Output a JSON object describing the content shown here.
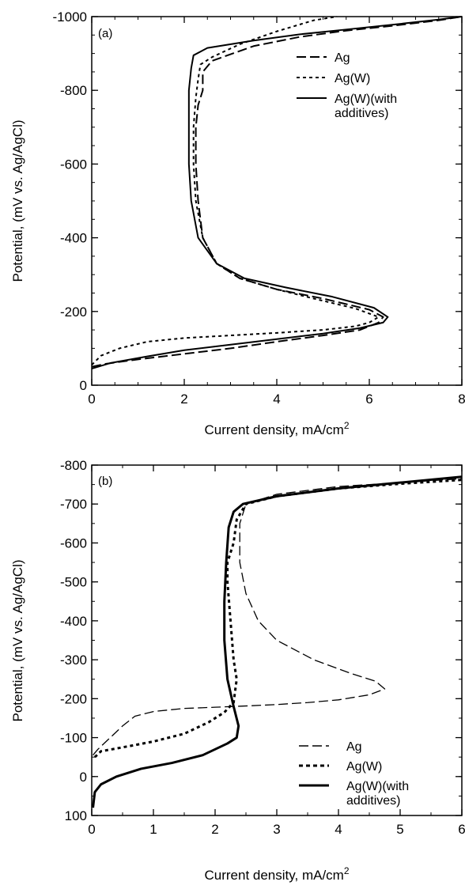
{
  "chart_data": [
    {
      "type": "line",
      "panel_label": "(a)",
      "xlabel": "Current density, mA/cm",
      "xlabel_sup": "2",
      "ylabel": "Potential, (mV vs. Ag/AgCl)",
      "xlim": [
        0,
        8
      ],
      "ylim": [
        0,
        -1000
      ],
      "y_reversed": true,
      "xticks": [
        0,
        2,
        4,
        6,
        8
      ],
      "yticks": [
        0,
        -200,
        -400,
        -600,
        -800,
        -1000
      ],
      "minor_x": 0.5,
      "minor_y": 50,
      "grid": false,
      "legend_position": "top-right",
      "series": [
        {
          "name": "Ag",
          "style": "long-dash",
          "x": [
            0.0,
            0.3,
            1.0,
            2.0,
            3.0,
            4.0,
            5.0,
            5.8,
            6.2,
            6.3,
            6.0,
            5.0,
            4.0,
            3.2,
            2.7,
            2.4,
            2.3,
            2.25,
            2.25,
            2.3,
            2.4,
            2.4,
            2.6,
            3.5,
            4.5,
            5.5,
            6.5,
            7.5,
            8.0
          ],
          "y": [
            -50,
            -58,
            -70,
            -85,
            -100,
            -118,
            -135,
            -150,
            -170,
            -185,
            -205,
            -235,
            -260,
            -290,
            -330,
            -400,
            -500,
            -600,
            -700,
            -760,
            -800,
            -850,
            -880,
            -920,
            -945,
            -962,
            -975,
            -990,
            -1000
          ]
        },
        {
          "name": "Ag(W)",
          "style": "short-dash",
          "x": [
            0.0,
            0.2,
            0.6,
            1.2,
            2.0,
            3.0,
            4.0,
            5.0,
            5.7,
            6.0,
            6.2,
            5.7,
            4.8,
            4.0,
            3.2,
            2.7,
            2.4,
            2.25,
            2.2,
            2.2,
            2.25,
            2.3,
            2.35,
            2.6,
            3.2,
            4.0,
            4.8,
            5.3
          ],
          "y": [
            -55,
            -80,
            -100,
            -118,
            -128,
            -135,
            -142,
            -150,
            -160,
            -170,
            -185,
            -208,
            -235,
            -260,
            -290,
            -330,
            -400,
            -500,
            -600,
            -700,
            -780,
            -830,
            -870,
            -890,
            -925,
            -960,
            -990,
            -1000
          ]
        },
        {
          "name": "Ag(W)(with additives)",
          "style": "solid",
          "x": [
            0.0,
            0.4,
            1.2,
            2.0,
            3.0,
            4.0,
            5.0,
            5.8,
            6.3,
            6.4,
            6.1,
            5.2,
            4.2,
            3.3,
            2.7,
            2.3,
            2.15,
            2.1,
            2.1,
            2.1,
            2.15,
            2.2,
            2.5,
            3.5,
            4.5,
            5.5,
            6.5,
            7.5,
            8.0
          ],
          "y": [
            -45,
            -60,
            -78,
            -95,
            -110,
            -125,
            -140,
            -155,
            -170,
            -185,
            -210,
            -240,
            -265,
            -290,
            -330,
            -400,
            -500,
            -600,
            -700,
            -800,
            -860,
            -895,
            -915,
            -935,
            -952,
            -965,
            -978,
            -992,
            -1000
          ]
        }
      ]
    },
    {
      "type": "line",
      "panel_label": "(b)",
      "xlabel": "Current density, mA/cm",
      "xlabel_sup": "2",
      "ylabel": "Potential, (mV vs. Ag/AgCl)",
      "xlim": [
        0,
        6
      ],
      "ylim": [
        100,
        -800
      ],
      "y_reversed": true,
      "xticks": [
        0,
        1,
        2,
        3,
        4,
        5,
        6
      ],
      "yticks": [
        100,
        0,
        -100,
        -200,
        -300,
        -400,
        -500,
        -600,
        -700,
        -800
      ],
      "minor_x": 0.5,
      "minor_y": 50,
      "grid": false,
      "legend_position": "bottom-right",
      "series": [
        {
          "name": "Ag",
          "style": "long-dash",
          "x": [
            0.02,
            0.1,
            0.3,
            0.5,
            0.7,
            1.0,
            1.5,
            2.0,
            2.3,
            2.6,
            3.0,
            3.5,
            4.0,
            4.5,
            4.75,
            4.6,
            4.2,
            3.6,
            3.0,
            2.7,
            2.5,
            2.4,
            2.4,
            2.5,
            3.0,
            4.0,
            5.0,
            6.0
          ],
          "y": [
            -55,
            -70,
            -100,
            -130,
            -155,
            -167,
            -175,
            -178,
            -180,
            -182,
            -185,
            -190,
            -197,
            -210,
            -225,
            -245,
            -265,
            -300,
            -350,
            -400,
            -470,
            -550,
            -650,
            -700,
            -725,
            -745,
            -755,
            -765
          ]
        },
        {
          "name": "Ag(W)",
          "style": "short-dash",
          "x": [
            0.05,
            0.15,
            0.5,
            1.0,
            1.5,
            1.9,
            2.15,
            2.3,
            2.35,
            2.3,
            2.25,
            2.2,
            2.2,
            2.3,
            2.35,
            2.5,
            3.0,
            4.0,
            5.0,
            6.0
          ],
          "y": [
            -50,
            -65,
            -75,
            -90,
            -110,
            -140,
            -165,
            -190,
            -250,
            -300,
            -400,
            -500,
            -550,
            -600,
            -660,
            -700,
            -720,
            -740,
            -752,
            -762
          ]
        },
        {
          "name": "Ag(W)(with additives)",
          "style": "solid",
          "x": [
            0.02,
            0.05,
            0.15,
            0.4,
            0.8,
            1.3,
            1.8,
            2.2,
            2.35,
            2.38,
            2.3,
            2.2,
            2.15,
            2.15,
            2.18,
            2.22,
            2.3,
            2.45,
            3.0,
            4.0,
            5.0,
            6.0
          ],
          "y": [
            80,
            40,
            20,
            0,
            -20,
            -35,
            -55,
            -85,
            -100,
            -130,
            -180,
            -250,
            -350,
            -450,
            -550,
            -640,
            -680,
            -700,
            -720,
            -740,
            -755,
            -770
          ]
        }
      ]
    }
  ]
}
